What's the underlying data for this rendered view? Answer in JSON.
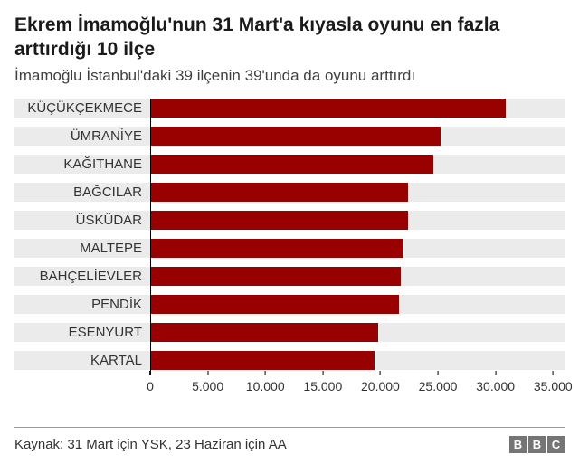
{
  "header": {
    "title": "Ekrem İmamoğlu'nun 31 Mart'a kıyasla oyunu en fazla arttırdığı 10 ilçe",
    "subtitle": "İmamoğlu İstanbul'daki 39 ilçenin 39'unda da oyunu arttırdı"
  },
  "chart_data": {
    "type": "bar",
    "orientation": "horizontal",
    "title": "Ekrem İmamoğlu'nun 31 Mart'a kıyasla oyunu en fazla arttırdığı 10 ilçe",
    "subtitle": "İmamoğlu İstanbul'daki 39 ilçenin 39'unda da oyunu arttırdı",
    "categories": [
      "KÜÇÜKÇEKMECE",
      "ÜMRANİYE",
      "KAĞITHANE",
      "BAĞCILAR",
      "ÜSKÜDAR",
      "MALTEPE",
      "BAHÇELİEVLER",
      "PENDİK",
      "ESENYURT",
      "KARTAL"
    ],
    "values": [
      30900,
      25200,
      24600,
      22400,
      22400,
      22000,
      21800,
      21600,
      19800,
      19500
    ],
    "x_tick_labels": [
      "0",
      "5.000",
      "10.000",
      "15.000",
      "20.000",
      "25.000",
      "30.000",
      "35.000"
    ],
    "x_tick_values": [
      0,
      5000,
      10000,
      15000,
      20000,
      25000,
      30000,
      35000
    ],
    "xlim": [
      0,
      36000
    ],
    "xlabel": "",
    "ylabel": "",
    "grid": false,
    "legend": "none",
    "bar_color": "#990000",
    "row_background_color": "#ebebeb"
  },
  "footer": {
    "source": "Kaynak: 31 Mart için YSK, 23 Haziran için AA",
    "logo_letters": [
      "B",
      "B",
      "C"
    ]
  }
}
